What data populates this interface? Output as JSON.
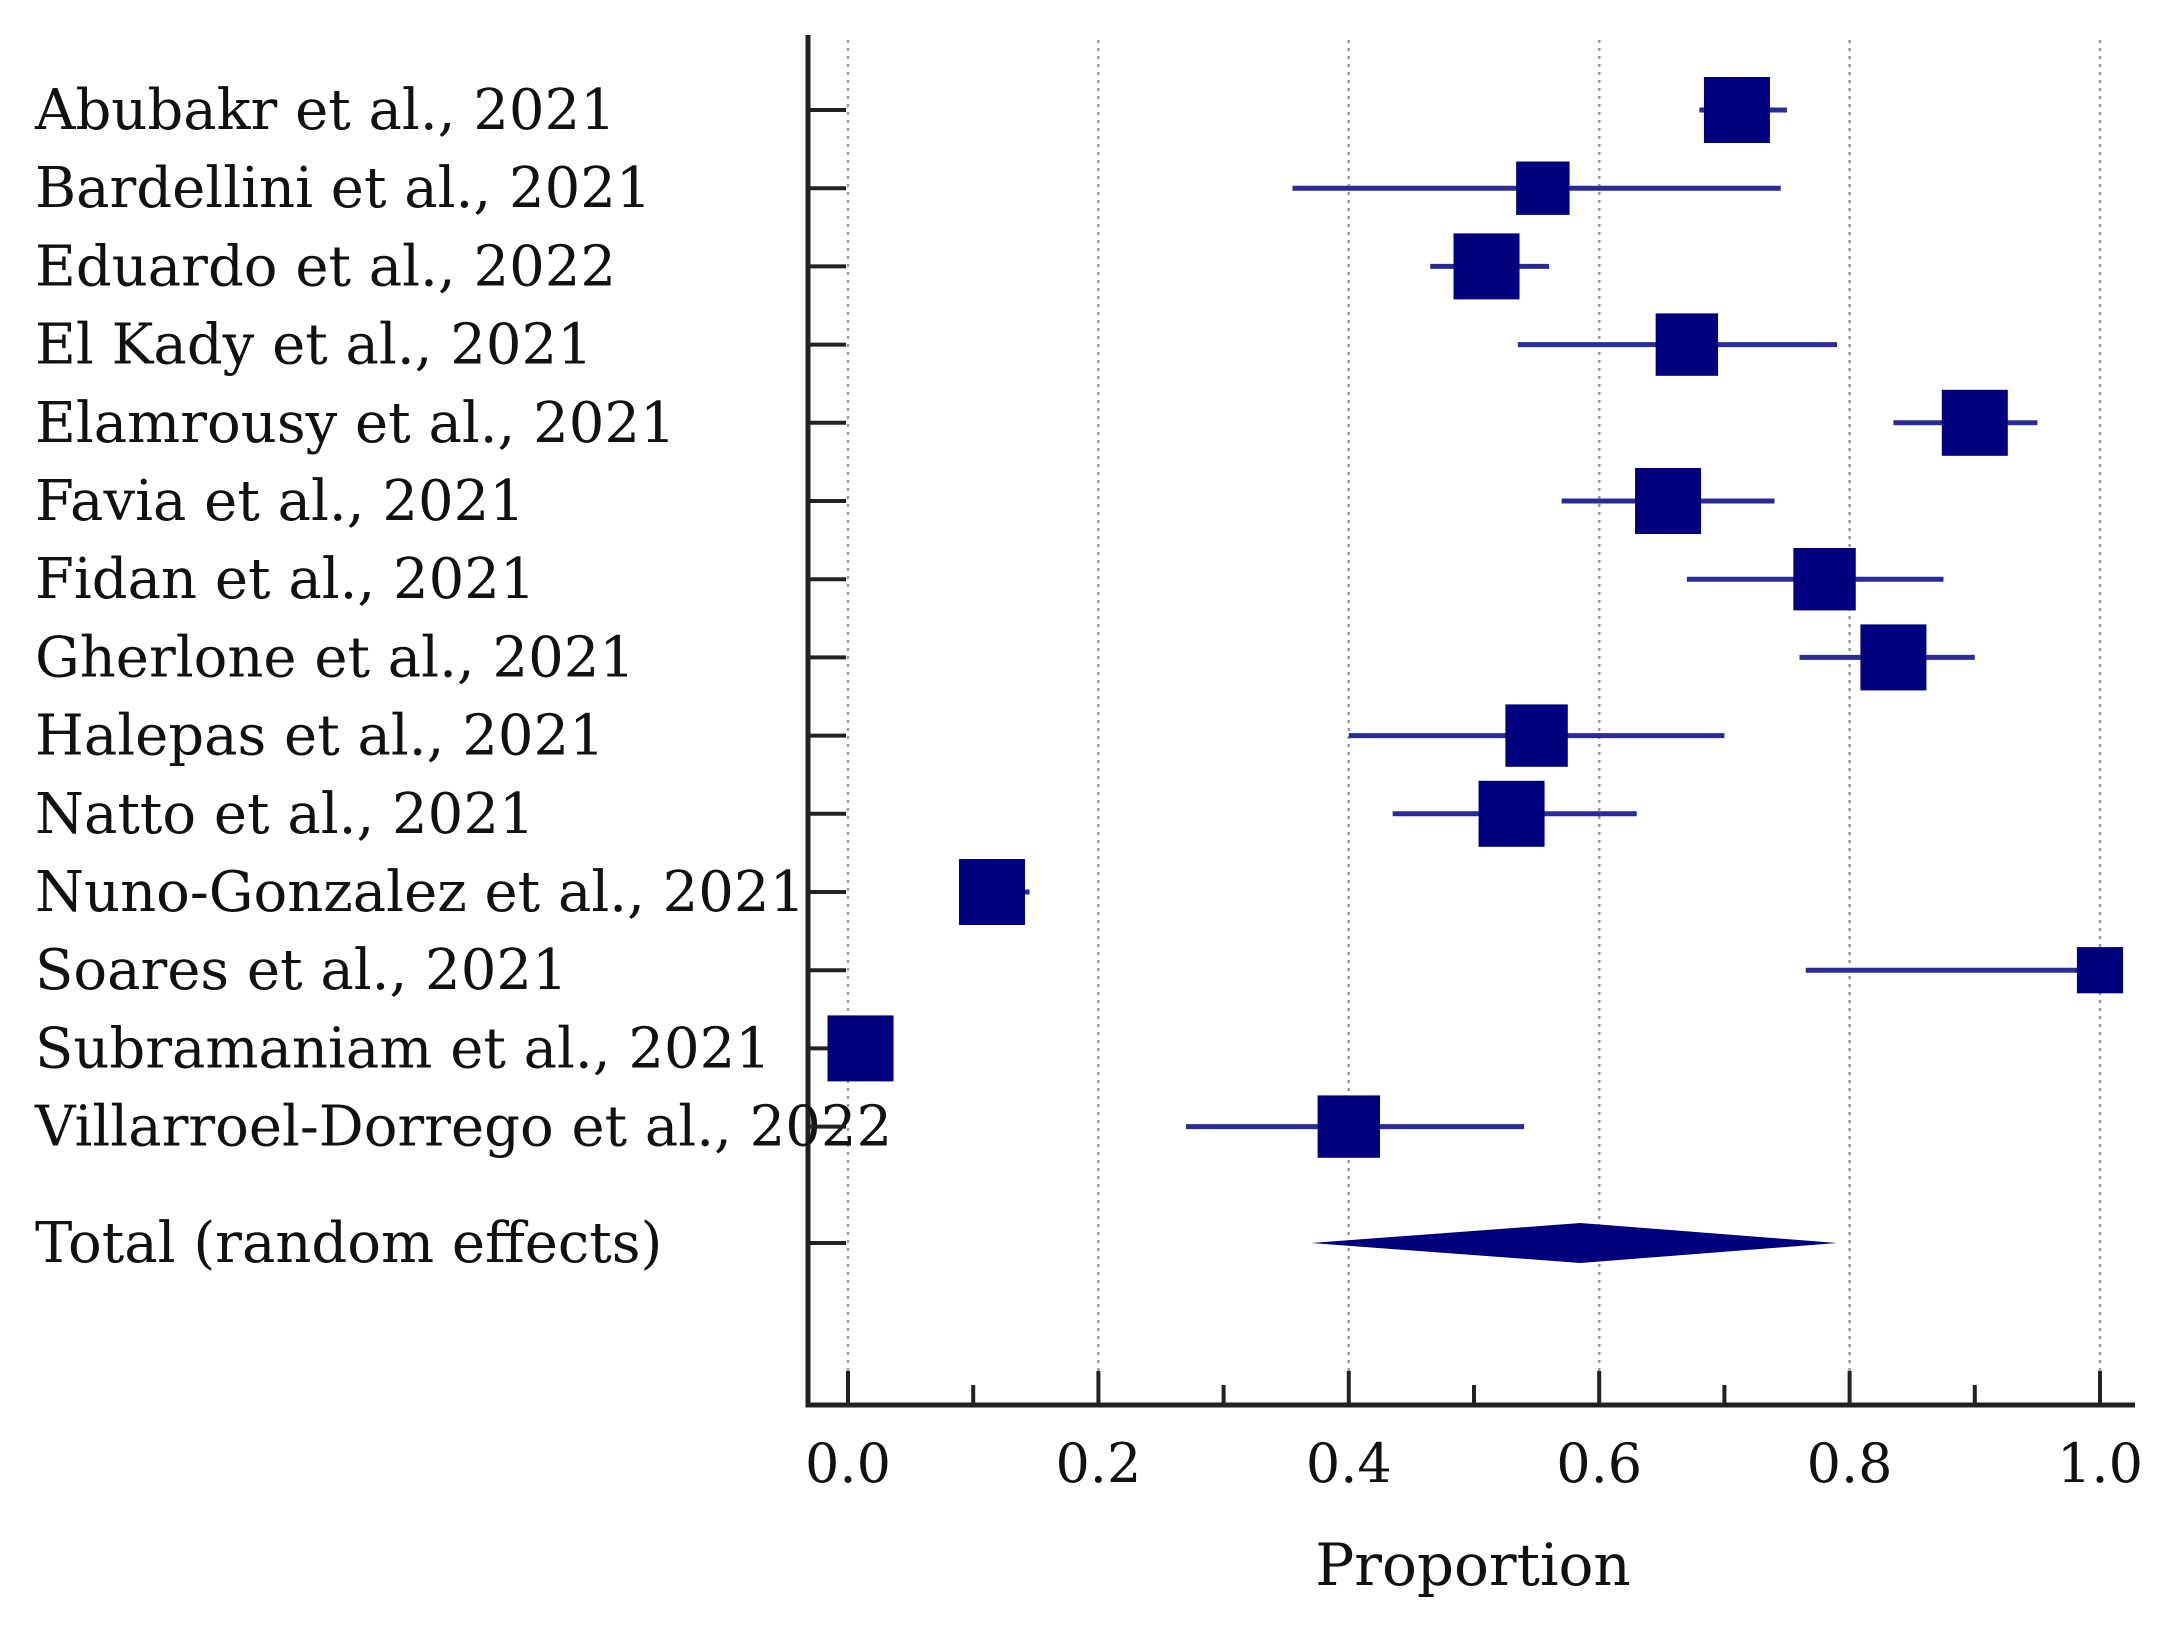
{
  "chart_data": {
    "type": "forest",
    "xlabel": "Proportion",
    "xlim": [
      0.0,
      1.0
    ],
    "xticks": [
      "0.0",
      "0.2",
      "0.4",
      "0.6",
      "0.8",
      "1.0"
    ],
    "minor_ticks": [
      0.1,
      0.3,
      0.5,
      0.7,
      0.9
    ],
    "grid": "vertical dotted",
    "color": "#00007f",
    "ci_color": "#2a2a99",
    "studies": [
      {
        "name": "Abubakr et al., 2021",
        "estimate": 0.71,
        "ci": [
          0.68,
          0.75
        ],
        "weight": 1.0
      },
      {
        "name": "Bardellini et al., 2021",
        "estimate": 0.555,
        "ci": [
          0.355,
          0.745
        ],
        "weight": 0.65
      },
      {
        "name": "Eduardo et al., 2022",
        "estimate": 0.51,
        "ci": [
          0.465,
          0.56
        ],
        "weight": 1.0
      },
      {
        "name": "El Kady et al., 2021",
        "estimate": 0.67,
        "ci": [
          0.535,
          0.79
        ],
        "weight": 0.9
      },
      {
        "name": "Elamrousy et al., 2021",
        "estimate": 0.9,
        "ci": [
          0.835,
          0.95
        ],
        "weight": 1.0
      },
      {
        "name": "Favia et al., 2021",
        "estimate": 0.655,
        "ci": [
          0.57,
          0.74
        ],
        "weight": 1.0
      },
      {
        "name": "Fidan et al., 2021",
        "estimate": 0.78,
        "ci": [
          0.67,
          0.875
        ],
        "weight": 0.9
      },
      {
        "name": "Gherlone et al., 2021",
        "estimate": 0.835,
        "ci": [
          0.76,
          0.9
        ],
        "weight": 1.0
      },
      {
        "name": "Halepas et al., 2021",
        "estimate": 0.55,
        "ci": [
          0.4,
          0.7
        ],
        "weight": 0.9
      },
      {
        "name": "Natto et al., 2021",
        "estimate": 0.53,
        "ci": [
          0.435,
          0.63
        ],
        "weight": 1.0
      },
      {
        "name": "Nuno-Gonzalez et al., 2021",
        "estimate": 0.115,
        "ci": [
          0.09,
          0.145
        ],
        "weight": 1.0
      },
      {
        "name": "Soares et al., 2021",
        "estimate": 1.0,
        "ci": [
          0.765,
          1.0
        ],
        "weight": 0.45
      },
      {
        "name": "Subramaniam et al., 2021",
        "estimate": 0.01,
        "ci": [
          0.0,
          0.02
        ],
        "weight": 1.0
      },
      {
        "name": "Villarroel-Dorrego et al., 2022",
        "estimate": 0.4,
        "ci": [
          0.27,
          0.54
        ],
        "weight": 0.9
      }
    ],
    "total": {
      "name": "Total (random effects)",
      "estimate": 0.585,
      "ci": [
        0.37,
        0.79
      ]
    }
  }
}
